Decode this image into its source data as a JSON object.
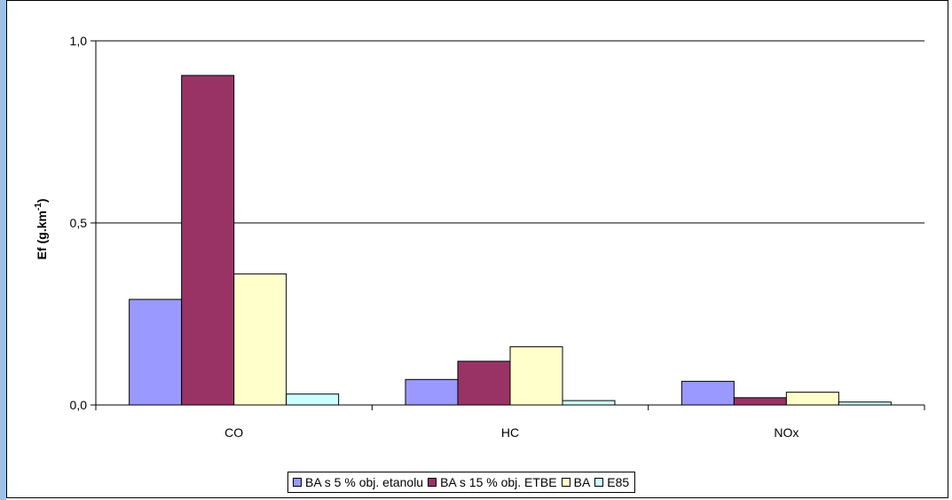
{
  "chart_data": {
    "type": "bar",
    "title": "",
    "xlabel": "",
    "ylabel": "Ef (g.km",
    "ylabel_superscript": "-1",
    "ylabel_suffix": ")",
    "categories": [
      "CO",
      "HC",
      "NOx"
    ],
    "ylim": [
      0,
      1.0
    ],
    "yticks": [
      0.0,
      0.5,
      1.0
    ],
    "ytick_labels": [
      "0,0",
      "0,5",
      "1,0"
    ],
    "grid": true,
    "legend_position": "bottom",
    "series": [
      {
        "name": "BA s 5 % obj. etanolu",
        "color": "#9999ff",
        "values": [
          0.29,
          0.07,
          0.065
        ]
      },
      {
        "name": "BA s 15 % obj. ETBE",
        "color": "#993366",
        "values": [
          0.905,
          0.12,
          0.02
        ]
      },
      {
        "name": "BA",
        "color": "#ffffcc",
        "values": [
          0.36,
          0.16,
          0.035
        ]
      },
      {
        "name": "E85",
        "color": "#ccffff",
        "values": [
          0.03,
          0.012,
          0.008
        ]
      }
    ]
  }
}
